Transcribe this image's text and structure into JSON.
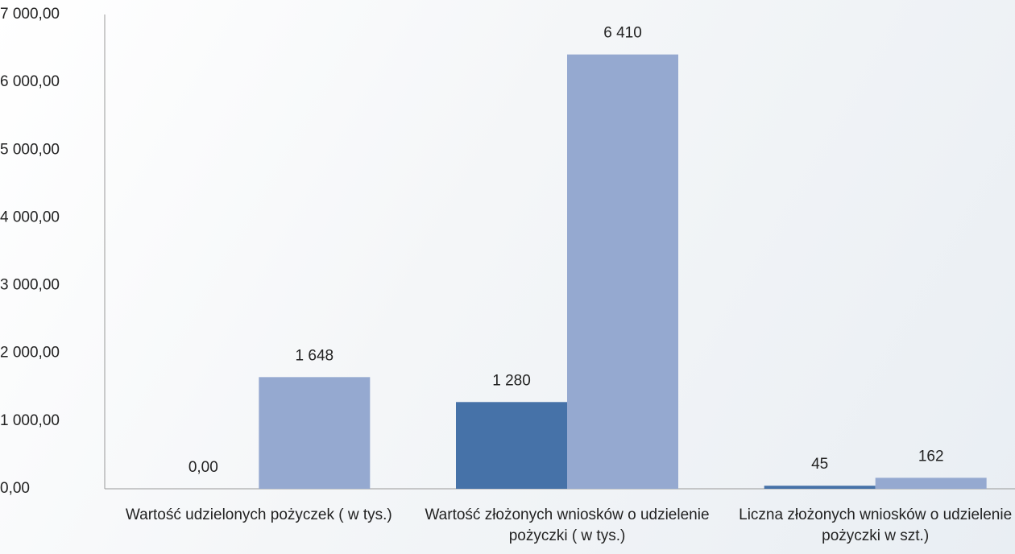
{
  "chart_data": {
    "type": "bar",
    "categories": [
      "Wartość udzielonych pożyczek ( w tys.)",
      "Wartość złożonych wniosków o udzielenie pożyczki ( w tys.)",
      "Liczna złożonych wniosków o udzielenie pożyczki w szt.)"
    ],
    "series": [
      {
        "color": "#4672a8",
        "values": [
          0,
          1280,
          45
        ],
        "value_labels": [
          "0,00",
          "1 280",
          "45"
        ]
      },
      {
        "color": "#95a9d0",
        "values": [
          1648,
          6410,
          162
        ],
        "value_labels": [
          "1 648",
          "6 410",
          "162"
        ]
      }
    ],
    "ylim": [
      0,
      7000
    ],
    "yticks": [
      {
        "value": 0,
        "label": "0,00"
      },
      {
        "value": 1000,
        "label": "1 000,00"
      },
      {
        "value": 2000,
        "label": "2 000,00"
      },
      {
        "value": 3000,
        "label": "3 000,00"
      },
      {
        "value": 4000,
        "label": "4 000,00"
      },
      {
        "value": 5000,
        "label": "5 000,00"
      },
      {
        "value": 6000,
        "label": "6 000,00"
      },
      {
        "value": 7000,
        "label": "7 000,00"
      }
    ]
  }
}
